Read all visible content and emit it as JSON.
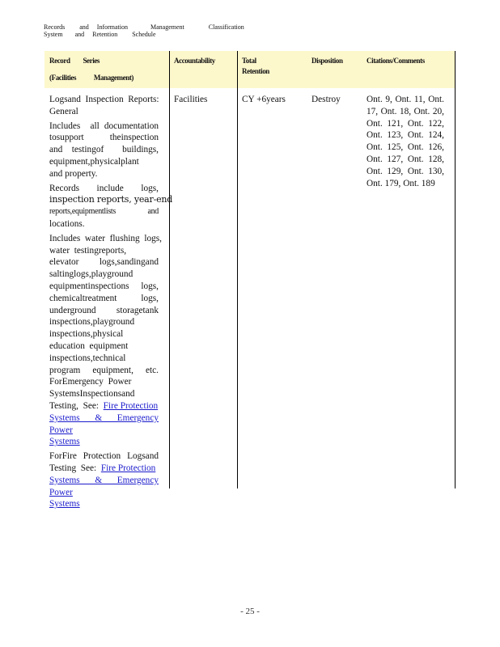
{
  "header_text": {
    "line1": [
      "Records",
      "and",
      "Information",
      "Management",
      "Classification"
    ],
    "line2": [
      "System",
      "and",
      "Retention",
      "Schedule"
    ]
  },
  "table": {
    "header_bg": "#fdf7cc",
    "headers": {
      "record_series_1": "Record      Series",
      "record_series_2": "(Facilities          Management)",
      "accountability": "Accountability",
      "total_retention_1": "Total",
      "total_retention_2": "Retention",
      "disposition": "Disposition",
      "citations": "Citations/Comments"
    },
    "row": {
      "record_series": [
        {
          "lines": [
            {
              "t": "Logsand  Inspection  Reports:",
              "j": true
            },
            {
              "t": "General"
            }
          ]
        },
        {
          "lines": [
            {
              "t": "Includes  all documentation",
              "j": true
            },
            {
              "t": "tosupport  theinspection",
              "j": true
            },
            {
              "t": "and testingof  buildings,",
              "j": true
            },
            {
              "t": "equipment,physicalplant"
            },
            {
              "t": "and property."
            }
          ]
        },
        {
          "lines": [
            {
              "t": "Records  include  logs,",
              "j": true
            },
            {
              "t": "inspection reports, year-end",
              "c": "big"
            },
            {
              "t": "reports,equipmentlists  and",
              "j": true,
              "c": "small"
            },
            {
              "t": "locations."
            }
          ]
        },
        {
          "lines": [
            {
              "t": "Includes  water  flushing  logs,",
              "j": true
            },
            {
              "t": "water  testingreports,"
            },
            {
              "t": "elevator  logs,sandingand",
              "j": true
            },
            {
              "t": "saltinglogs,playground"
            },
            {
              "t": "equipmentinspections  logs,",
              "j": true
            },
            {
              "t": "chemicaltreatment  logs,",
              "j": true
            },
            {
              "t": "underground  storagetank",
              "j": true
            },
            {
              "t": "inspections,playground"
            },
            {
              "t": "inspections,physical"
            },
            {
              "t": "education  equipment"
            },
            {
              "t": "inspections,technical"
            },
            {
              "t": "program  equipment,  etc.",
              "j": true
            },
            {
              "t": "ForEmergency  Power",
              "j": false
            },
            {
              "t": "SystemsInspectionsand"
            },
            {
              "t": "Testing,  See:  ",
              "link": "Fire Protection"
            },
            {
              "link": "Systems  & Emergency  Power",
              "j": true
            },
            {
              "link": "Systems"
            }
          ]
        },
        {
          "lines": [
            {
              "t": "ForFire  Protection  Logsand",
              "j": true
            },
            {
              "t": "Testing  See:  ",
              "link": "Fire Protection"
            },
            {
              "link": "Systems  & Emergency  Power",
              "j": true
            },
            {
              "link": "Systems"
            }
          ]
        }
      ],
      "accountability": "Facilities",
      "total_retention": "CY +6years",
      "disposition": "Destroy",
      "citations": [
        "Ont. 9, Ont. 11, Ont.",
        "17, Ont. 18, Ont. 20,",
        "Ont. 121, Ont. 122,",
        "Ont. 123, Ont. 124,",
        "Ont. 125, Ont. 126,",
        "Ont. 127, Ont. 128,",
        "Ont. 129, Ont. 130,",
        "Ont. 179, Ont. 189"
      ]
    }
  },
  "page_number": "- 25 -"
}
